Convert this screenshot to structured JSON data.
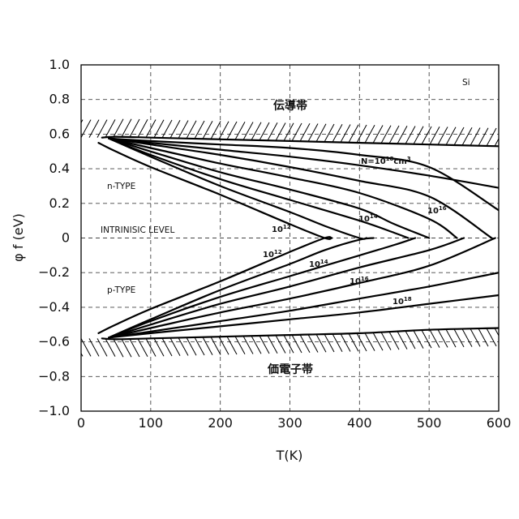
{
  "chart_data": {
    "type": "line",
    "title": "",
    "xlabel": "T(K)",
    "ylabel": "φ f (eV)",
    "xlim": [
      0,
      600
    ],
    "ylim": [
      -1.0,
      1.0
    ],
    "x_ticks": [
      0,
      100,
      200,
      300,
      400,
      500,
      600
    ],
    "x_tick_labels": [
      "0",
      "100",
      "200",
      "300",
      "400",
      "500",
      "600"
    ],
    "y_ticks": [
      1.0,
      0.8,
      0.6,
      0.4,
      0.2,
      0,
      -0.2,
      -0.4,
      -0.6,
      -0.8,
      -1.0
    ],
    "y_tick_labels": [
      "1.0",
      "0.8",
      "0.6",
      "0.4",
      "0.2",
      "0",
      "−0.2",
      "−0.4",
      "−0.6",
      "−0.8",
      "−1.0"
    ],
    "grid": true,
    "annotations": {
      "material": "Si",
      "conduction_band": "伝導帯",
      "valence_band": "価電子帯",
      "n_type": "n-TYPE",
      "p_type": "p-TYPE",
      "intrinsic": "INTRINISIC LEVEL",
      "n_top_prefix": "N=10",
      "n_top_exp": "18",
      "n_top_unit": "cm",
      "n_top_unit_exp": "3",
      "n12_base": "10",
      "n12_exp": "12",
      "n14_base": "10",
      "n14_exp": "14",
      "n16_base": "10",
      "n16_exp": "16",
      "p12_base": "10",
      "p12_exp": "12",
      "p14_base": "10",
      "p14_exp": "14",
      "p16_base": "10",
      "p16_exp": "16",
      "p18_base": "10",
      "p18_exp": "18"
    },
    "band_edges": {
      "conduction": {
        "x": [
          30,
          50,
          100,
          200,
          300,
          400,
          500,
          600
        ],
        "y": [
          0.58,
          0.585,
          0.58,
          0.57,
          0.56,
          0.55,
          0.54,
          0.53
        ]
      },
      "valence": {
        "x": [
          30,
          50,
          100,
          200,
          300,
          400,
          500,
          600
        ],
        "y": [
          -0.58,
          -0.585,
          -0.58,
          -0.57,
          -0.56,
          -0.55,
          -0.53,
          -0.52
        ]
      }
    },
    "series": [
      {
        "x": [
          25,
          50,
          100,
          200,
          300,
          350,
          360
        ],
        "y": [
          0.55,
          0.5,
          0.41,
          0.25,
          0.08,
          0.0,
          0.0
        ]
      },
      {
        "x": [
          40,
          100,
          200,
          300,
          350,
          400,
          410
        ],
        "y": [
          0.575,
          0.47,
          0.3,
          0.15,
          0.07,
          0.0,
          0.0
        ]
      },
      {
        "x": [
          40,
          100,
          200,
          300,
          400,
          450,
          470
        ],
        "y": [
          0.575,
          0.48,
          0.34,
          0.22,
          0.1,
          0.03,
          0.0
        ]
      },
      {
        "x": [
          40,
          100,
          200,
          300,
          400,
          450,
          500
        ],
        "y": [
          0.575,
          0.5,
          0.38,
          0.28,
          0.17,
          0.08,
          0.0
        ]
      },
      {
        "x": [
          40,
          100,
          200,
          300,
          400,
          500,
          540
        ],
        "y": [
          0.575,
          0.52,
          0.43,
          0.35,
          0.26,
          0.11,
          0.0
        ]
      },
      {
        "x": [
          40,
          100,
          200,
          300,
          400,
          500,
          590
        ],
        "y": [
          0.575,
          0.54,
          0.48,
          0.41,
          0.33,
          0.24,
          0.0
        ]
      },
      {
        "x": [
          40,
          100,
          200,
          300,
          400,
          500,
          600
        ],
        "y": [
          0.575,
          0.55,
          0.51,
          0.47,
          0.42,
          0.36,
          0.29
        ]
      },
      {
        "x": [
          40,
          100,
          200,
          300,
          400,
          500,
          600
        ],
        "y": [
          0.575,
          0.56,
          0.54,
          0.52,
          0.48,
          0.41,
          0.16
        ]
      },
      {
        "x": [
          25,
          50,
          100,
          200,
          300,
          350,
          360
        ],
        "y": [
          -0.55,
          -0.5,
          -0.41,
          -0.25,
          -0.08,
          0.0,
          0.0
        ]
      },
      {
        "x": [
          40,
          100,
          200,
          300,
          350,
          400,
          420
        ],
        "y": [
          -0.575,
          -0.47,
          -0.3,
          -0.15,
          -0.07,
          -0.01,
          0.0
        ]
      },
      {
        "x": [
          40,
          100,
          200,
          300,
          400,
          450,
          480
        ],
        "y": [
          -0.575,
          -0.48,
          -0.34,
          -0.22,
          -0.1,
          -0.04,
          0.0
        ]
      },
      {
        "x": [
          40,
          100,
          200,
          300,
          400,
          500,
          550
        ],
        "y": [
          -0.575,
          -0.5,
          -0.38,
          -0.28,
          -0.17,
          -0.07,
          0.0
        ]
      },
      {
        "x": [
          40,
          100,
          200,
          300,
          400,
          500,
          595
        ],
        "y": [
          -0.575,
          -0.52,
          -0.43,
          -0.35,
          -0.26,
          -0.16,
          0.0
        ]
      },
      {
        "x": [
          40,
          100,
          200,
          300,
          400,
          500,
          600
        ],
        "y": [
          -0.575,
          -0.54,
          -0.48,
          -0.42,
          -0.35,
          -0.28,
          -0.2
        ]
      },
      {
        "x": [
          40,
          100,
          200,
          300,
          400,
          500,
          600
        ],
        "y": [
          -0.575,
          -0.55,
          -0.51,
          -0.47,
          -0.43,
          -0.38,
          -0.33
        ]
      }
    ]
  }
}
